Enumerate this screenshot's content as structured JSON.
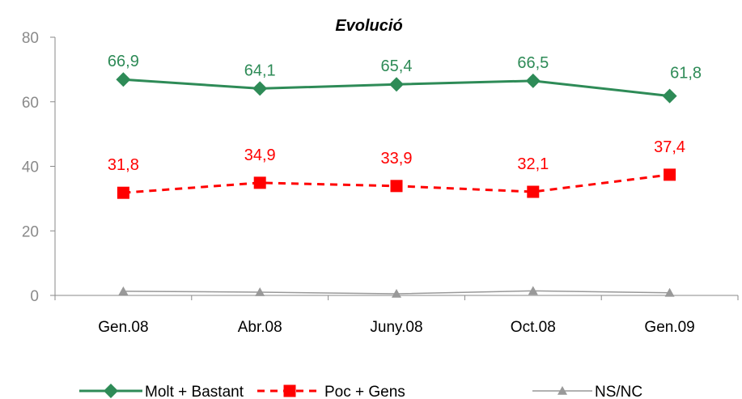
{
  "chart_data": {
    "type": "line",
    "title": "Evolució",
    "categories": [
      "Gen.08",
      "Abr.08",
      "Juny.08",
      "Oct.08",
      "Gen.09"
    ],
    "ylim": [
      0,
      80
    ],
    "yticks": [
      "0",
      "20",
      "40",
      "60",
      "80"
    ],
    "grid": false,
    "legend_position": "bottom",
    "series": [
      {
        "name": "Molt  + Bastant",
        "values": [
          66.9,
          64.1,
          65.4,
          66.5,
          61.8
        ],
        "labels": [
          "66,9",
          "64,1",
          "65,4",
          "66,5",
          "61,8"
        ],
        "color": "#2e8b57",
        "marker": "diamond",
        "dash": "solid"
      },
      {
        "name": "Poc + Gens",
        "values": [
          31.8,
          34.9,
          33.9,
          32.1,
          37.4
        ],
        "labels": [
          "31,8",
          "34,9",
          "33,9",
          "32,1",
          "37,4"
        ],
        "color": "#ff0000",
        "marker": "square",
        "dash": "dashed"
      },
      {
        "name": "NS/NC",
        "values": [
          1.3,
          1.0,
          0.5,
          1.4,
          0.8
        ],
        "labels": [
          "",
          "",
          "",
          "",
          ""
        ],
        "color": "#999999",
        "marker": "triangle",
        "dash": "solid"
      }
    ]
  }
}
